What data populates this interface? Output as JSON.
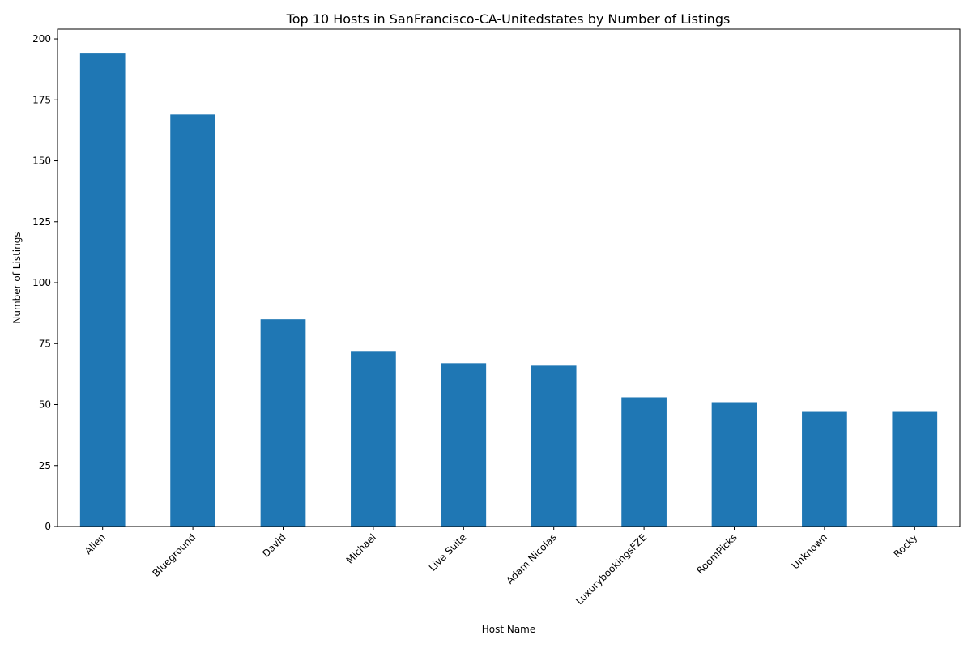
{
  "chart_data": {
    "type": "bar",
    "title": "Top 10 Hosts in SanFrancisco-CA-Unitedstates by Number of Listings",
    "xlabel": "Host Name",
    "ylabel": "Number of Listings",
    "categories": [
      "Allen",
      "Blueground",
      "David",
      "Michael",
      "Live Suite",
      "Adam Nicolas",
      "LuxurybookingsFZE",
      "RoomPicks",
      "Unknown",
      "Rocky"
    ],
    "values": [
      194,
      169,
      85,
      72,
      67,
      66,
      53,
      51,
      47,
      47
    ],
    "ylim": [
      0,
      204
    ],
    "yticks": [
      0,
      25,
      50,
      75,
      100,
      125,
      150,
      175,
      200
    ],
    "grid": false,
    "legend": "none",
    "bar_color": "#1f77b4"
  }
}
